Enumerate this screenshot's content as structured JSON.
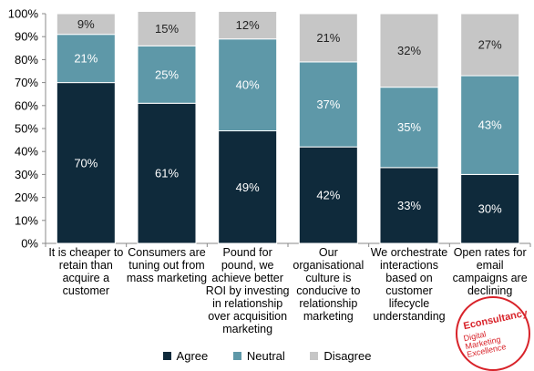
{
  "chart_data": {
    "type": "bar",
    "stacked": true,
    "categories": [
      [
        "It is cheaper to",
        "retain than",
        "acquire a",
        "customer"
      ],
      [
        "Consumers are",
        "tuning out from",
        "mass marketing"
      ],
      [
        "Pound for",
        "pound, we",
        "achieve better",
        "ROI by investing",
        "in relationship",
        "over acquisition",
        "marketing"
      ],
      [
        "Our",
        "organisational",
        "culture is",
        "conducive to",
        "relationship",
        "marketing"
      ],
      [
        "We orchestrate",
        "interactions",
        "based on",
        "customer",
        "lifecycle",
        "understanding"
      ],
      [
        "Open rates for",
        "email",
        "campaigns are",
        "declining"
      ]
    ],
    "series": [
      {
        "name": "Agree",
        "color": "#0f2a3b",
        "label_color": "#ffffff",
        "values": [
          70,
          61,
          49,
          42,
          33,
          30
        ]
      },
      {
        "name": "Neutral",
        "color": "#5e98a8",
        "label_color": "#ffffff",
        "values": [
          21,
          25,
          40,
          37,
          35,
          43
        ]
      },
      {
        "name": "Disagree",
        "color": "#c6c6c6",
        "label_color": "#222222",
        "values": [
          9,
          15,
          12,
          21,
          32,
          27
        ]
      }
    ],
    "y_ticks": [
      "0%",
      "10%",
      "20%",
      "30%",
      "40%",
      "50%",
      "60%",
      "70%",
      "80%",
      "90%",
      "100%"
    ],
    "ylim": [
      0,
      100
    ],
    "grid": false,
    "legend_position": "bottom",
    "title": "",
    "xlabel": "",
    "ylabel": ""
  },
  "seal": {
    "brand": "Econsultancy",
    "line1": "Digital",
    "line2": "Marketing",
    "line3": "Excellence"
  }
}
